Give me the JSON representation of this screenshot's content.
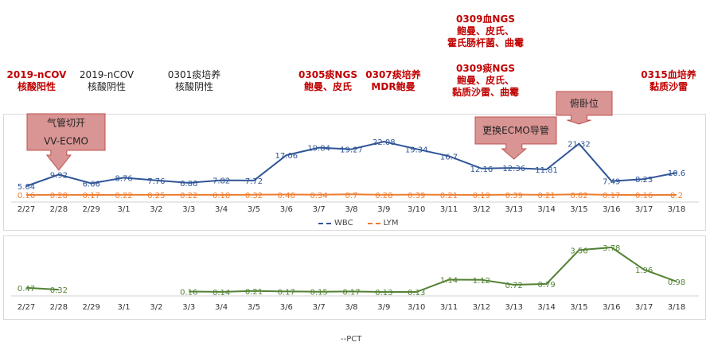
{
  "annotations": [
    {
      "lines": "2019-nCOV\n核酸阳性",
      "style": "red"
    },
    {
      "lines": "2019-nCOV\n核酸阴性",
      "style": "black"
    },
    {
      "lines": "0301痰培养\n核酸阴性",
      "style": "black"
    },
    {
      "lines": "0305痰NGS\n鲍曼、皮氏",
      "style": "red"
    },
    {
      "lines": "0307痰培养\nMDR鲍曼",
      "style": "red"
    },
    {
      "lines": "0309血NGS\n鲍曼、皮氏、\n霍氏肠杆菌、曲霉",
      "style": "red"
    },
    {
      "lines": "0309痰NGS\n鲍曼、皮氏、\n黏质沙雷、曲霉",
      "style": "red"
    },
    {
      "lines": "0315血培养\n黏质沙雷",
      "style": "red"
    }
  ],
  "callouts": [
    {
      "text": "气管切开\nVV-ECMO"
    },
    {
      "text": "更换ECMO导管"
    },
    {
      "text": "俯卧位"
    }
  ],
  "colors": {
    "wbc": "#2f5597",
    "lym": "#ed7d31",
    "pct": "#548235",
    "callout_fill": "#d99594",
    "callout_border": "#c0504d"
  },
  "chart_data": [
    {
      "type": "line",
      "categories": [
        "2/27",
        "2/28",
        "2/29",
        "3/1",
        "3/2",
        "3/3",
        "3/4",
        "3/5",
        "3/6",
        "3/7",
        "3/8",
        "3/9",
        "3/10",
        "3/11",
        "3/12",
        "3/13",
        "3/14",
        "3/15",
        "3/16",
        "3/17",
        "3/18"
      ],
      "series": [
        {
          "name": "WBC",
          "values": [
            5.64,
            9.92,
            6.66,
            8.76,
            7.76,
            6.86,
            7.82,
            7.72,
            17.06,
            19.84,
            19.27,
            22.08,
            19.34,
            16.7,
            12.16,
            12.36,
            11.81,
            21.32,
            7.49,
            8.23,
            10.6
          ]
        },
        {
          "name": "LYM",
          "values": [
            0.16,
            0.28,
            0.17,
            0.22,
            0.25,
            0.22,
            0.18,
            0.32,
            0.46,
            0.34,
            0.7,
            0.28,
            0.39,
            0.21,
            0.19,
            0.39,
            0.21,
            0.62,
            0.17,
            0.16,
            0.2
          ]
        }
      ],
      "legend": "bottom"
    },
    {
      "type": "line",
      "categories": [
        "2/27",
        "2/28",
        "2/29",
        "3/1",
        "3/2",
        "3/3",
        "3/4",
        "3/5",
        "3/6",
        "3/7",
        "3/8",
        "3/9",
        "3/10",
        "3/11",
        "3/12",
        "3/13",
        "3/14",
        "3/15",
        "3/16",
        "3/17",
        "3/18"
      ],
      "series": [
        {
          "name": "--PCT",
          "values": [
            0.47,
            0.32,
            null,
            null,
            null,
            0.16,
            0.14,
            0.21,
            0.17,
            0.15,
            0.17,
            0.13,
            0.13,
            1.14,
            1.12,
            0.72,
            0.79,
            3.56,
            3.78,
            1.96,
            0.98
          ]
        }
      ],
      "legend": "bottom"
    }
  ]
}
